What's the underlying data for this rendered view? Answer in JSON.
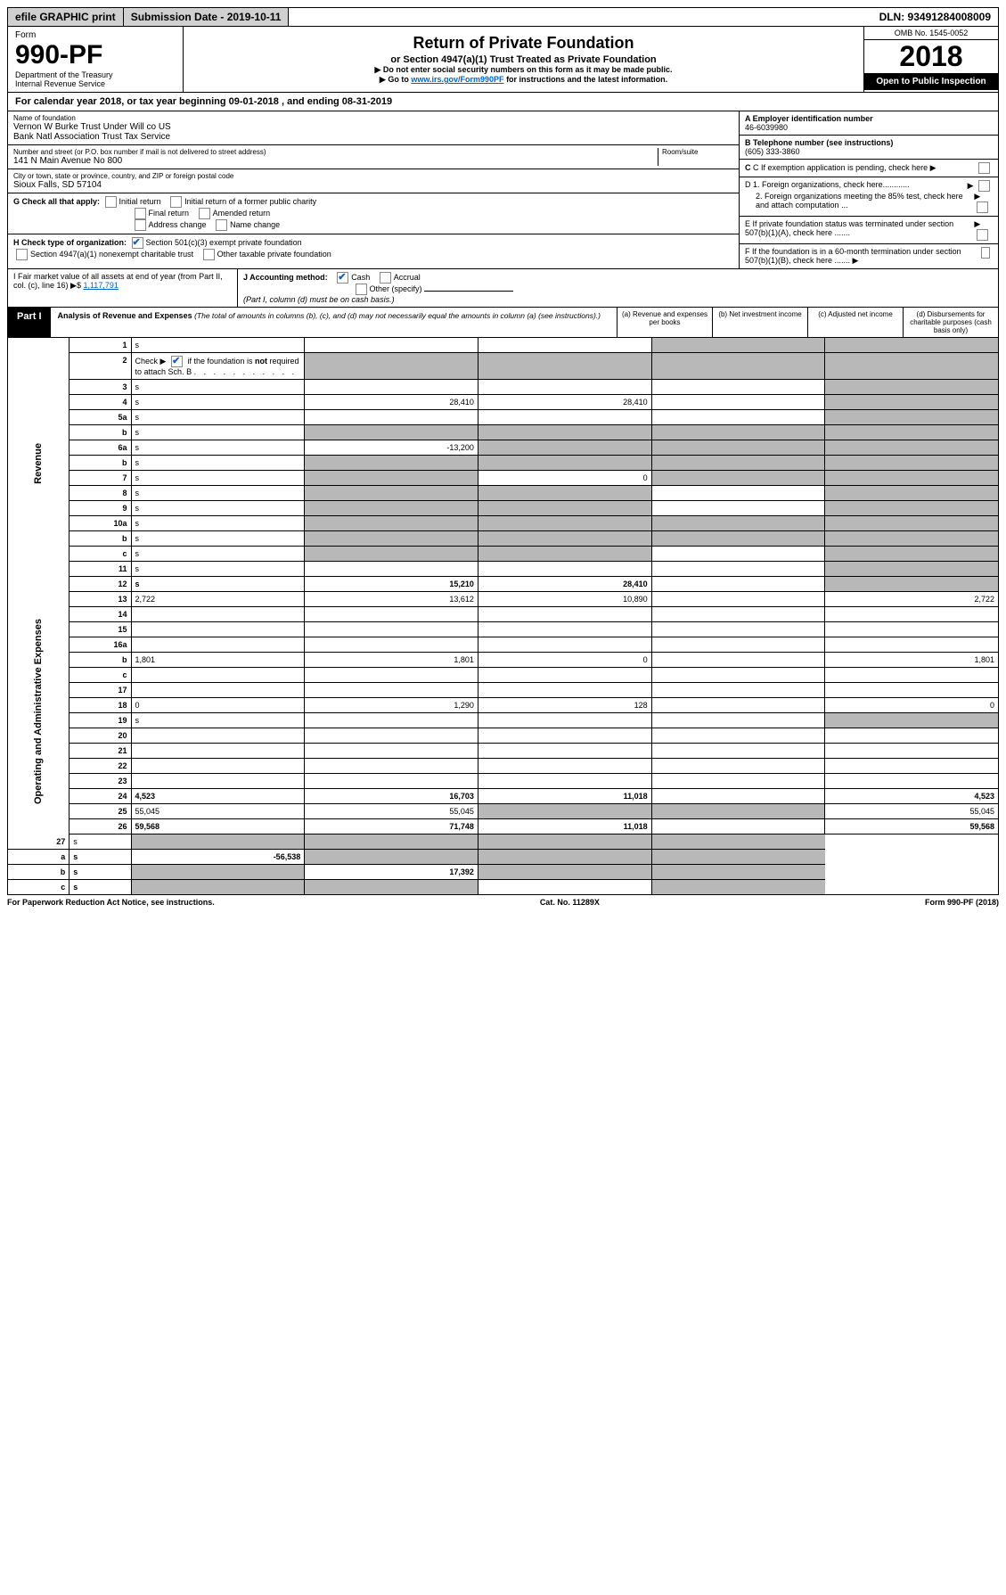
{
  "topbar": {
    "efile": "efile GRAPHIC print",
    "subdate_label": "Submission Date - 2019-10-11",
    "dln": "DLN: 93491284008009"
  },
  "header": {
    "form_word": "Form",
    "form_number": "990-PF",
    "dept": "Department of the Treasury\nInternal Revenue Service",
    "title": "Return of Private Foundation",
    "subtitle": "or Section 4947(a)(1) Trust Treated as Private Foundation",
    "instruct1": "▶ Do not enter social security numbers on this form as it may be made public.",
    "instruct2": "▶ Go to ",
    "link": "www.irs.gov/Form990PF",
    "instruct3": " for instructions and the latest information.",
    "omb": "OMB No. 1545-0052",
    "year": "2018",
    "inspect": "Open to Public Inspection"
  },
  "calyear": "For calendar year 2018, or tax year beginning 09-01-2018              , and ending 08-31-2019",
  "filer": {
    "name_label": "Name of foundation",
    "name": "Vernon W Burke Trust Under Will co US\nBank Natl Association Trust Tax Service",
    "addr_label": "Number and street (or P.O. box number if mail is not delivered to street address)",
    "addr": "141 N Main Avenue No 800",
    "room_label": "Room/suite",
    "city_label": "City or town, state or province, country, and ZIP or foreign postal code",
    "city": "Sioux Falls, SD  57104",
    "g_label": "G Check all that apply:",
    "g_opts": [
      "Initial return",
      "Initial return of a former public charity",
      "Final return",
      "Amended return",
      "Address change",
      "Name change"
    ],
    "h_label": "H Check type of organization:",
    "h1": "Section 501(c)(3) exempt private foundation",
    "h2": "Section 4947(a)(1) nonexempt charitable trust",
    "h3": "Other taxable private foundation",
    "i_label": "I Fair market value of all assets at end of year (from Part II, col. (c), line 16) ▶$ ",
    "i_value": "1,117,791",
    "j_label": "J Accounting method:",
    "j_opts": [
      "Cash",
      "Accrual"
    ],
    "j_other": "Other (specify)",
    "j_note": "(Part I, column (d) must be on cash basis.)"
  },
  "right": {
    "a_label": "A Employer identification number",
    "a_value": "46-6039980",
    "b_label": "B Telephone number (see instructions)",
    "b_value": "(605) 333-3860",
    "c_label": "C If exemption application is pending, check here",
    "d1": "D 1. Foreign organizations, check here............",
    "d2": "2. Foreign organizations meeting the 85% test, check here and attach computation ...",
    "e": "E  If private foundation status was terminated under section 507(b)(1)(A), check here .......",
    "f": "F  If the foundation is in a 60-month termination under section 507(b)(1)(B), check here .......  ▶"
  },
  "part1": {
    "label": "Part I",
    "title": "Analysis of Revenue and Expenses",
    "sub": " (The total of amounts in columns (b), (c), and (d) may not necessarily equal the amounts in column (a) (see instructions).)",
    "cols": {
      "a": "(a)   Revenue and expenses per books",
      "b": "(b)   Net investment income",
      "c": "(c)   Adjusted net income",
      "d": "(d)   Disbursements for charitable purposes (cash basis only)"
    }
  },
  "sections": {
    "revenue": "Revenue",
    "expenses": "Operating and Administrative Expenses"
  },
  "rows": [
    {
      "n": "1",
      "d": "s",
      "a": "",
      "b": "",
      "c": "s"
    },
    {
      "n": "2",
      "d": "s",
      "a": "s",
      "b": "s",
      "c": "s",
      "dotrow": true
    },
    {
      "n": "3",
      "d": "s",
      "a": "",
      "b": "",
      "c": ""
    },
    {
      "n": "4",
      "d": "s",
      "a": "28,410",
      "b": "28,410",
      "c": ""
    },
    {
      "n": "5a",
      "d": "s",
      "a": "",
      "b": "",
      "c": ""
    },
    {
      "n": "b",
      "d": "s",
      "a": "s",
      "b": "s",
      "c": "s"
    },
    {
      "n": "6a",
      "d": "s",
      "a": "-13,200",
      "b": "s",
      "c": "s"
    },
    {
      "n": "b",
      "d": "s",
      "a": "s",
      "b": "s",
      "c": "s"
    },
    {
      "n": "7",
      "d": "s",
      "a": "s",
      "b": "0",
      "c": "s"
    },
    {
      "n": "8",
      "d": "s",
      "a": "s",
      "b": "s",
      "c": ""
    },
    {
      "n": "9",
      "d": "s",
      "a": "s",
      "b": "s",
      "c": ""
    },
    {
      "n": "10a",
      "d": "s",
      "a": "s",
      "b": "s",
      "c": "s"
    },
    {
      "n": "b",
      "d": "s",
      "a": "s",
      "b": "s",
      "c": "s"
    },
    {
      "n": "c",
      "d": "s",
      "a": "s",
      "b": "s",
      "c": ""
    },
    {
      "n": "11",
      "d": "s",
      "a": "",
      "b": "",
      "c": ""
    },
    {
      "n": "12",
      "d": "s",
      "a": "15,210",
      "b": "28,410",
      "c": "",
      "bold": true
    }
  ],
  "exprows": [
    {
      "n": "13",
      "d": "2,722",
      "a": "13,612",
      "b": "10,890",
      "c": ""
    },
    {
      "n": "14",
      "d": "",
      "a": "",
      "b": "",
      "c": ""
    },
    {
      "n": "15",
      "d": "",
      "a": "",
      "b": "",
      "c": ""
    },
    {
      "n": "16a",
      "d": "",
      "a": "",
      "b": "",
      "c": ""
    },
    {
      "n": "b",
      "d": "1,801",
      "a": "1,801",
      "b": "0",
      "c": ""
    },
    {
      "n": "c",
      "d": "",
      "a": "",
      "b": "",
      "c": ""
    },
    {
      "n": "17",
      "d": "",
      "a": "",
      "b": "",
      "c": ""
    },
    {
      "n": "18",
      "d": "0",
      "a": "1,290",
      "b": "128",
      "c": ""
    },
    {
      "n": "19",
      "d": "s",
      "a": "",
      "b": "",
      "c": ""
    },
    {
      "n": "20",
      "d": "",
      "a": "",
      "b": "",
      "c": ""
    },
    {
      "n": "21",
      "d": "",
      "a": "",
      "b": "",
      "c": ""
    },
    {
      "n": "22",
      "d": "",
      "a": "",
      "b": "",
      "c": ""
    },
    {
      "n": "23",
      "d": "",
      "a": "",
      "b": "",
      "c": ""
    },
    {
      "n": "24",
      "d": "4,523",
      "a": "16,703",
      "b": "11,018",
      "c": "",
      "bold": true
    },
    {
      "n": "25",
      "d": "55,045",
      "a": "55,045",
      "b": "s",
      "c": "s"
    },
    {
      "n": "26",
      "d": "59,568",
      "a": "71,748",
      "b": "11,018",
      "c": "",
      "bold": true
    }
  ],
  "row27": [
    {
      "n": "27",
      "d": "s",
      "a": "s",
      "b": "s",
      "c": "s"
    },
    {
      "n": "a",
      "d": "s",
      "a": "-56,538",
      "b": "s",
      "c": "s",
      "bold": true
    },
    {
      "n": "b",
      "d": "s",
      "a": "s",
      "b": "17,392",
      "c": "s",
      "bold": true
    },
    {
      "n": "c",
      "d": "s",
      "a": "s",
      "b": "s",
      "c": "",
      "bold": true
    }
  ],
  "footer": {
    "left": "For Paperwork Reduction Act Notice, see instructions.",
    "center": "Cat. No. 11289X",
    "right": "Form 990-PF (2018)"
  }
}
